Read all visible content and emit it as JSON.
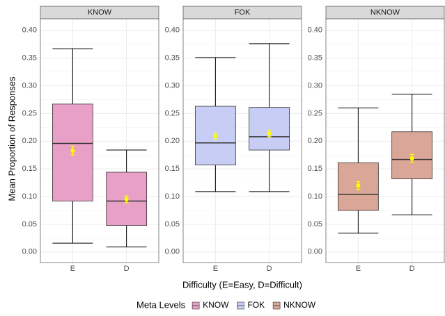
{
  "chart_data": {
    "type": "box",
    "ylabel": "Mean Proportion of Responses",
    "xlabel": "Difficulty (E=Easy, D=Difficult)",
    "legend_title": "Meta Levels",
    "categories": [
      "E",
      "D"
    ],
    "ylim": [
      -0.019,
      0.421
    ],
    "yticks": [
      {
        "value": 0,
        "label": "0.00"
      },
      {
        "value": 0.05,
        "label": "0.05"
      },
      {
        "value": 0.1,
        "label": "0.10"
      },
      {
        "value": 0.15,
        "label": "0.15"
      },
      {
        "value": 0.2,
        "label": "0.20"
      },
      {
        "value": 0.25,
        "label": "0.25"
      },
      {
        "value": 0.3,
        "label": "0.30"
      },
      {
        "value": 0.35,
        "label": "0.35"
      },
      {
        "value": 0.4,
        "label": "0.40"
      }
    ],
    "grid": true,
    "mean_color": "#ffff00",
    "series": [
      {
        "name": "KNOW",
        "color": "#e8a0c6",
        "boxes": [
          {
            "min": 0.016,
            "q1": 0.092,
            "median": 0.196,
            "q3": 0.267,
            "max": 0.367,
            "mean": 0.183,
            "mean_err": 0.008
          },
          {
            "min": 0.009,
            "q1": 0.048,
            "median": 0.092,
            "q3": 0.144,
            "max": 0.184,
            "mean": 0.095,
            "mean_err": 0.006
          }
        ]
      },
      {
        "name": "FOK",
        "color": "#c8cdf6",
        "boxes": [
          {
            "min": 0.109,
            "q1": 0.157,
            "median": 0.197,
            "q3": 0.263,
            "max": 0.351,
            "mean": 0.209,
            "mean_err": 0.006
          },
          {
            "min": 0.109,
            "q1": 0.184,
            "median": 0.208,
            "q3": 0.261,
            "max": 0.376,
            "mean": 0.214,
            "mean_err": 0.006
          }
        ]
      },
      {
        "name": "NKNOW",
        "color": "#d9a697",
        "boxes": [
          {
            "min": 0.034,
            "q1": 0.075,
            "median": 0.104,
            "q3": 0.161,
            "max": 0.26,
            "mean": 0.12,
            "mean_err": 0.007
          },
          {
            "min": 0.067,
            "q1": 0.132,
            "median": 0.167,
            "q3": 0.217,
            "max": 0.285,
            "mean": 0.169,
            "mean_err": 0.007
          }
        ]
      }
    ]
  }
}
